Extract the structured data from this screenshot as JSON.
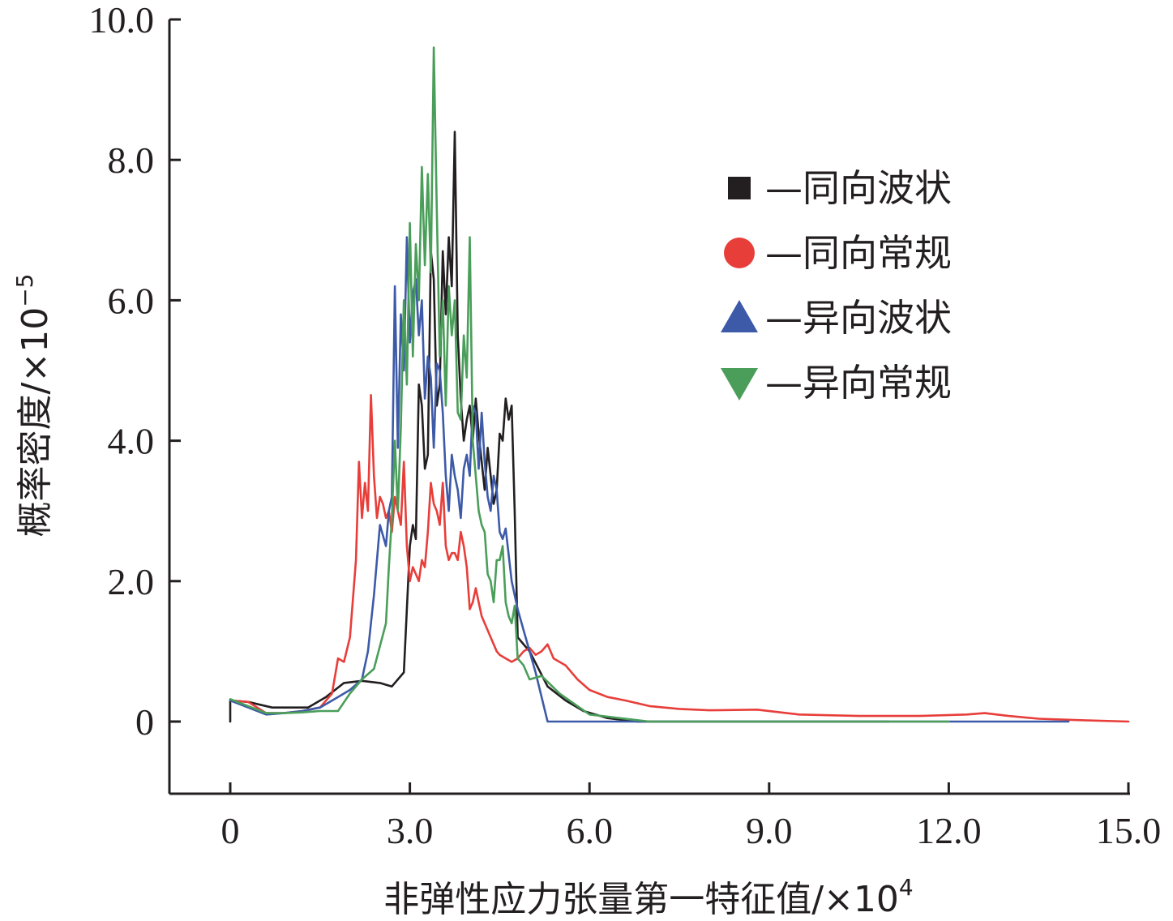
{
  "chart_data": {
    "type": "line",
    "title": "",
    "xlabel": "非弹性应力张量第一特征值/×10",
    "xlabel_exp": "4",
    "ylabel": "概率密度/×10",
    "ylabel_exp": "−5",
    "x_ticks": [
      "0",
      "3.0",
      "6.0",
      "9.0",
      "12.0",
      "15.0"
    ],
    "y_ticks": [
      "0",
      "2.0",
      "4.0",
      "6.0",
      "8.0",
      "10.0"
    ],
    "x_tick_values": [
      0,
      3,
      6,
      9,
      12,
      15
    ],
    "y_tick_values": [
      0,
      2,
      4,
      6,
      8,
      10
    ],
    "xlim": [
      -1.0,
      15.0
    ],
    "ylim": [
      -1.0,
      10.0
    ],
    "legend_position": "top-right",
    "series": [
      {
        "name": "—同向波状",
        "color": "#231f20",
        "marker": "square",
        "x": [
          0.0,
          0.0,
          0.3,
          0.7,
          1.0,
          1.3,
          1.6,
          1.9,
          2.2,
          2.5,
          2.7,
          2.9,
          3.0,
          3.05,
          3.1,
          3.15,
          3.2,
          3.25,
          3.3,
          3.35,
          3.4,
          3.45,
          3.5,
          3.55,
          3.6,
          3.65,
          3.7,
          3.75,
          3.8,
          3.85,
          3.9,
          3.95,
          4.0,
          4.05,
          4.1,
          4.15,
          4.2,
          4.25,
          4.3,
          4.35,
          4.4,
          4.45,
          4.5,
          4.55,
          4.6,
          4.65,
          4.7,
          4.75,
          4.8,
          5.0,
          5.3,
          5.6,
          5.9,
          6.3,
          6.8,
          7.5,
          8.5,
          10.0,
          11.0
        ],
        "y": [
          0.0,
          0.3,
          0.28,
          0.2,
          0.2,
          0.2,
          0.35,
          0.55,
          0.58,
          0.55,
          0.5,
          0.7,
          2.5,
          2.8,
          2.6,
          4.8,
          4.5,
          3.6,
          3.8,
          6.7,
          6.3,
          4.5,
          4.8,
          6.7,
          5.8,
          6.9,
          6.2,
          8.4,
          5.5,
          4.6,
          4.0,
          4.3,
          4.5,
          4.0,
          4.6,
          4.1,
          3.7,
          3.3,
          3.9,
          3.5,
          3.1,
          3.3,
          4.1,
          4.0,
          4.6,
          4.3,
          4.5,
          3.0,
          1.2,
          1.0,
          0.5,
          0.3,
          0.15,
          0.05,
          0.0,
          0.0,
          0.0,
          0.0,
          0.0
        ]
      },
      {
        "name": "—同向常规",
        "color": "#e73e3a",
        "marker": "circle",
        "x": [
          0.0,
          0.3,
          0.6,
          0.9,
          1.2,
          1.5,
          1.7,
          1.8,
          1.9,
          2.0,
          2.1,
          2.15,
          2.2,
          2.25,
          2.3,
          2.35,
          2.4,
          2.45,
          2.5,
          2.55,
          2.6,
          2.65,
          2.7,
          2.75,
          2.8,
          2.85,
          2.9,
          2.95,
          3.0,
          3.05,
          3.1,
          3.15,
          3.2,
          3.25,
          3.3,
          3.35,
          3.4,
          3.45,
          3.5,
          3.55,
          3.6,
          3.65,
          3.7,
          3.75,
          3.8,
          3.85,
          3.9,
          3.95,
          4.0,
          4.05,
          4.1,
          4.15,
          4.2,
          4.25,
          4.3,
          4.35,
          4.4,
          4.45,
          4.5,
          4.6,
          4.7,
          4.8,
          4.9,
          5.0,
          5.1,
          5.2,
          5.3,
          5.4,
          5.6,
          5.8,
          6.0,
          6.3,
          6.6,
          7.0,
          7.5,
          8.0,
          8.8,
          9.5,
          10.5,
          11.5,
          12.3,
          12.6,
          13.0,
          13.5,
          14.2,
          15.0
        ],
        "y": [
          0.3,
          0.28,
          0.12,
          0.12,
          0.15,
          0.2,
          0.4,
          0.9,
          0.85,
          1.2,
          2.3,
          3.7,
          2.9,
          3.4,
          3.0,
          4.65,
          3.5,
          2.9,
          3.2,
          3.1,
          2.9,
          3.0,
          2.7,
          3.2,
          3.0,
          2.8,
          3.7,
          2.5,
          2.0,
          2.2,
          2.1,
          2.0,
          2.3,
          2.2,
          2.7,
          3.4,
          3.1,
          3.0,
          2.8,
          3.4,
          2.5,
          2.3,
          2.4,
          2.4,
          2.3,
          2.7,
          2.5,
          2.2,
          1.6,
          1.7,
          1.9,
          1.7,
          1.5,
          1.4,
          1.3,
          1.2,
          1.1,
          1.0,
          0.95,
          0.9,
          0.85,
          0.9,
          1.0,
          1.05,
          0.95,
          1.0,
          1.1,
          0.9,
          0.8,
          0.6,
          0.45,
          0.35,
          0.3,
          0.22,
          0.18,
          0.16,
          0.17,
          0.1,
          0.08,
          0.08,
          0.1,
          0.12,
          0.08,
          0.04,
          0.02,
          0.0
        ]
      },
      {
        "name": "—异向波状",
        "color": "#3d5aa8",
        "marker": "triangle-up",
        "x": [
          0.0,
          0.3,
          0.6,
          0.9,
          1.2,
          1.5,
          1.8,
          2.0,
          2.2,
          2.3,
          2.4,
          2.5,
          2.6,
          2.65,
          2.7,
          2.75,
          2.8,
          2.85,
          2.9,
          2.95,
          3.0,
          3.05,
          3.1,
          3.15,
          3.2,
          3.25,
          3.3,
          3.35,
          3.4,
          3.45,
          3.5,
          3.55,
          3.6,
          3.65,
          3.7,
          3.75,
          3.8,
          3.85,
          3.9,
          3.95,
          4.0,
          4.05,
          4.1,
          4.15,
          4.2,
          4.25,
          4.3,
          4.35,
          4.4,
          4.45,
          4.5,
          4.55,
          4.6,
          4.7,
          4.8,
          4.9,
          5.0,
          5.1,
          5.3,
          6.0,
          7.0,
          10.0,
          14.0
        ],
        "y": [
          0.3,
          0.2,
          0.1,
          0.12,
          0.15,
          0.2,
          0.35,
          0.45,
          0.6,
          1.0,
          1.8,
          2.8,
          2.5,
          3.0,
          3.2,
          6.2,
          3.9,
          5.8,
          5.0,
          6.9,
          5.4,
          6.1,
          6.3,
          5.5,
          6.0,
          4.6,
          5.2,
          4.9,
          3.9,
          5.1,
          5.0,
          4.4,
          3.5,
          3.0,
          3.8,
          3.5,
          3.3,
          2.9,
          3.6,
          3.8,
          3.5,
          4.5,
          4.4,
          3.6,
          4.4,
          3.7,
          3.2,
          3.0,
          3.5,
          3.3,
          2.7,
          2.6,
          2.75,
          2.0,
          1.6,
          1.3,
          1.0,
          0.7,
          0.0,
          0.0,
          0.0,
          0.0,
          0.0
        ]
      },
      {
        "name": "—异向常规",
        "color": "#4a9e5a",
        "marker": "triangle-down",
        "x": [
          0.0,
          0.3,
          0.6,
          0.9,
          1.2,
          1.5,
          1.8,
          2.0,
          2.2,
          2.4,
          2.6,
          2.65,
          2.7,
          2.75,
          2.8,
          2.85,
          2.9,
          2.95,
          3.0,
          3.05,
          3.1,
          3.15,
          3.2,
          3.25,
          3.3,
          3.35,
          3.4,
          3.45,
          3.5,
          3.55,
          3.6,
          3.65,
          3.7,
          3.75,
          3.8,
          3.85,
          3.9,
          3.95,
          4.0,
          4.05,
          4.1,
          4.15,
          4.2,
          4.25,
          4.3,
          4.35,
          4.4,
          4.45,
          4.5,
          4.55,
          4.6,
          4.65,
          4.7,
          4.75,
          4.8,
          4.9,
          5.0,
          5.2,
          5.5,
          6.0,
          7.0,
          9.0,
          12.0
        ],
        "y": [
          0.32,
          0.22,
          0.12,
          0.12,
          0.13,
          0.15,
          0.15,
          0.4,
          0.6,
          0.75,
          1.4,
          2.2,
          2.9,
          4.0,
          3.0,
          4.2,
          6.0,
          4.8,
          7.1,
          5.2,
          6.8,
          6.0,
          7.9,
          6.5,
          7.8,
          6.4,
          9.6,
          7.3,
          5.2,
          6.0,
          4.5,
          6.2,
          5.5,
          6.0,
          4.4,
          4.3,
          5.5,
          4.9,
          6.9,
          4.0,
          3.5,
          3.0,
          2.8,
          2.7,
          2.1,
          2.0,
          1.7,
          2.3,
          2.3,
          2.5,
          1.7,
          1.5,
          1.4,
          1.65,
          0.9,
          0.8,
          0.6,
          0.65,
          0.4,
          0.1,
          0.0,
          0.0,
          0.0
        ]
      }
    ]
  }
}
